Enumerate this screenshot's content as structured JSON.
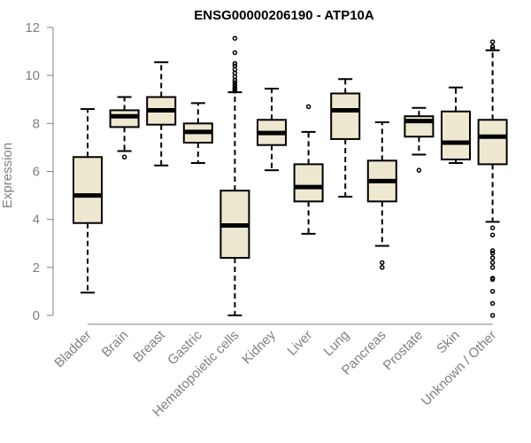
{
  "chart_data": {
    "type": "boxplot",
    "title": "ENSG00000206190 - ATP10A",
    "xlabel": "",
    "ylabel": "Expression",
    "ylim": [
      0,
      12
    ],
    "yticks": [
      0,
      2,
      4,
      6,
      8,
      10,
      12
    ],
    "box_color": "#efe8d0",
    "categories": [
      "Bladder",
      "Brain",
      "Breast",
      "Gastric",
      "Hematopoietic cells",
      "Kidney",
      "Liver",
      "Lung",
      "Pancreas",
      "Prostate",
      "Skin",
      "Unknown / Other"
    ],
    "series": [
      {
        "name": "Bladder",
        "whisker_low": 0.95,
        "q1": 3.85,
        "median": 5.0,
        "q3": 6.6,
        "whisker_high": 8.6,
        "outliers": []
      },
      {
        "name": "Brain",
        "whisker_low": 6.85,
        "q1": 7.85,
        "median": 8.3,
        "q3": 8.55,
        "whisker_high": 9.1,
        "outliers": [
          6.6
        ]
      },
      {
        "name": "Breast",
        "whisker_low": 6.25,
        "q1": 7.95,
        "median": 8.55,
        "q3": 9.1,
        "whisker_high": 10.55,
        "outliers": []
      },
      {
        "name": "Gastric",
        "whisker_low": 6.35,
        "q1": 7.2,
        "median": 7.65,
        "q3": 8.0,
        "whisker_high": 8.85,
        "outliers": []
      },
      {
        "name": "Hematopoietic cells",
        "whisker_low": 0.0,
        "q1": 2.4,
        "median": 3.75,
        "q3": 5.2,
        "whisker_high": 9.3,
        "outliers": [
          9.35,
          9.4,
          9.45,
          9.5,
          9.6,
          9.7,
          9.8,
          9.95,
          10.1,
          10.25,
          10.4,
          10.5,
          10.95,
          11.55
        ]
      },
      {
        "name": "Kidney",
        "whisker_low": 6.05,
        "q1": 7.1,
        "median": 7.6,
        "q3": 8.15,
        "whisker_high": 9.45,
        "outliers": []
      },
      {
        "name": "Liver",
        "whisker_low": 3.4,
        "q1": 4.75,
        "median": 5.35,
        "q3": 6.3,
        "whisker_high": 7.65,
        "outliers": [
          8.7
        ]
      },
      {
        "name": "Lung",
        "whisker_low": 4.95,
        "q1": 7.35,
        "median": 8.55,
        "q3": 9.25,
        "whisker_high": 9.85,
        "outliers": []
      },
      {
        "name": "Pancreas",
        "whisker_low": 2.9,
        "q1": 4.75,
        "median": 5.6,
        "q3": 6.45,
        "whisker_high": 8.05,
        "outliers": [
          2.0,
          2.2
        ]
      },
      {
        "name": "Prostate",
        "whisker_low": 6.7,
        "q1": 7.45,
        "median": 8.1,
        "q3": 8.3,
        "whisker_high": 8.65,
        "outliers": [
          6.05
        ]
      },
      {
        "name": "Skin",
        "whisker_low": 6.35,
        "q1": 6.5,
        "median": 7.2,
        "q3": 8.5,
        "whisker_high": 9.5,
        "outliers": []
      },
      {
        "name": "Unknown / Other",
        "whisker_low": 3.9,
        "q1": 6.3,
        "median": 7.45,
        "q3": 8.15,
        "whisker_high": 11.05,
        "outliers": [
          0.0,
          0.5,
          1.0,
          1.5,
          1.55,
          2.0,
          2.2,
          2.4,
          2.6,
          2.7,
          3.35,
          3.65,
          11.1,
          11.2,
          11.4
        ]
      }
    ]
  }
}
